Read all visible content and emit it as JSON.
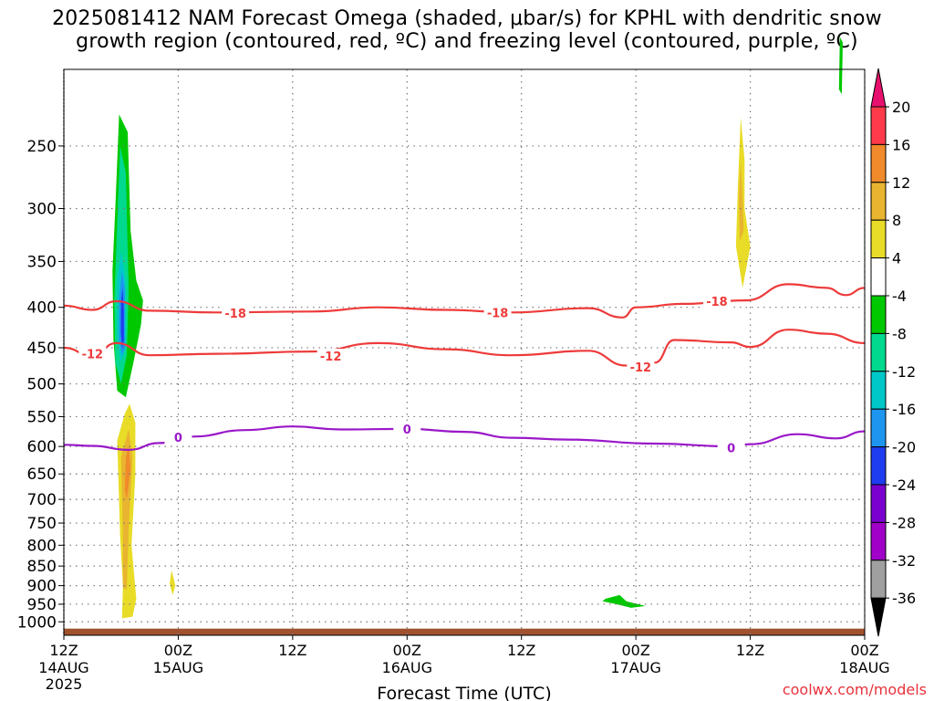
{
  "title_line1": "2025081412 NAM Forecast Omega (shaded, μbar/s) for KPHL with dendritic snow",
  "title_line2": "growth region (contoured, red, ºC) and freezing level (contoured, purple, ºC)",
  "credit": "coolwx.com/models",
  "chart_data": {
    "type": "contour-timeheight",
    "xlabel": "Forecast Time (UTC)",
    "ylabel": "",
    "x_ticks": [
      {
        "label": "12Z",
        "date": "14AUG",
        "year": "2025",
        "hour": 0
      },
      {
        "label": "00Z",
        "date": "15AUG",
        "year": "",
        "hour": 12
      },
      {
        "label": "12Z",
        "date": "",
        "year": "",
        "hour": 24
      },
      {
        "label": "00Z",
        "date": "16AUG",
        "year": "",
        "hour": 36
      },
      {
        "label": "12Z",
        "date": "",
        "year": "",
        "hour": 48
      },
      {
        "label": "00Z",
        "date": "17AUG",
        "year": "",
        "hour": 60
      },
      {
        "label": "12Z",
        "date": "",
        "year": "",
        "hour": 72
      },
      {
        "label": "00Z",
        "date": "18AUG",
        "year": "",
        "hour": 84
      }
    ],
    "y_scale": "log",
    "y_ticks": [
      250,
      300,
      350,
      400,
      450,
      500,
      550,
      600,
      650,
      700,
      750,
      800,
      850,
      900,
      950,
      1000
    ],
    "ylim_hpa": [
      1040,
      200
    ],
    "colorbar": {
      "labels": [
        "20",
        "16",
        "12",
        "8",
        "4",
        "-4",
        "-8",
        "-12",
        "-16",
        "-20",
        "-24",
        "-28",
        "-32",
        "-36"
      ],
      "colors": [
        "#ff3a4a",
        "#f08a2a",
        "#e9b430",
        "#e8dc28",
        "#ffffff",
        "#00c800",
        "#00d98e",
        "#00c8c8",
        "#1e96f0",
        "#1e3cf0",
        "#7a00d0",
        "#a000c8",
        "#a0a0a0"
      ],
      "top_arrow_color": "#e8106e",
      "bottom_arrow_color": "#000000"
    },
    "contours": [
      {
        "name": "-18",
        "color": "#ee3a3a",
        "points": [
          [
            0,
            398
          ],
          [
            3,
            403
          ],
          [
            5.5,
            393
          ],
          [
            9,
            404
          ],
          [
            16,
            406
          ],
          [
            26,
            405
          ],
          [
            33,
            400
          ],
          [
            40,
            403
          ],
          [
            47,
            406
          ],
          [
            55,
            401
          ],
          [
            58.6,
            412
          ],
          [
            60,
            400
          ],
          [
            65,
            396
          ],
          [
            71.5,
            392
          ],
          [
            76,
            374
          ],
          [
            80,
            378
          ],
          [
            82,
            386
          ],
          [
            84,
            378
          ]
        ],
        "labels": [
          [
            18,
            407
          ],
          [
            45.5,
            406
          ],
          [
            68.5,
            393
          ]
        ]
      },
      {
        "name": "-12",
        "color": "#ee3a3a",
        "points": [
          [
            0,
            450
          ],
          [
            3,
            461
          ],
          [
            5.5,
            444
          ],
          [
            9,
            460
          ],
          [
            16,
            458
          ],
          [
            26,
            455
          ],
          [
            33,
            444
          ],
          [
            40,
            452
          ],
          [
            47,
            460
          ],
          [
            55,
            454
          ],
          [
            59,
            474
          ],
          [
            62,
            470
          ],
          [
            64,
            440
          ],
          [
            70,
            443
          ],
          [
            72,
            449
          ],
          [
            76,
            427
          ],
          [
            80,
            432
          ],
          [
            84,
            444
          ]
        ],
        "labels": [
          [
            3,
            458
          ],
          [
            28,
            461
          ],
          [
            60.5,
            476
          ]
        ]
      },
      {
        "name": "0",
        "color": "#9a18c8",
        "points": [
          [
            0,
            597
          ],
          [
            3,
            599
          ],
          [
            6.8,
            606
          ],
          [
            10,
            594
          ],
          [
            13.5,
            583
          ],
          [
            19,
            572
          ],
          [
            24,
            566
          ],
          [
            29,
            571
          ],
          [
            36,
            570
          ],
          [
            42,
            575
          ],
          [
            47,
            585
          ],
          [
            53,
            588
          ],
          [
            62,
            595
          ],
          [
            70,
            600
          ],
          [
            72,
            596
          ],
          [
            77,
            579
          ],
          [
            81,
            586
          ],
          [
            84,
            574
          ]
        ],
        "labels": [
          [
            12,
            584
          ],
          [
            36,
            570
          ],
          [
            70,
            602
          ]
        ]
      }
    ],
    "shaded_regions": [
      {
        "value": "-6",
        "color": "#00c800",
        "poly": [
          [
            5.8,
            228
          ],
          [
            6.7,
            240
          ],
          [
            7.0,
            320
          ],
          [
            7.6,
            370
          ],
          [
            8.3,
            392
          ],
          [
            8.1,
            420
          ],
          [
            7.3,
            470
          ],
          [
            6.5,
            520
          ],
          [
            5.6,
            510
          ],
          [
            5.2,
            440
          ],
          [
            5.1,
            360
          ],
          [
            5.4,
            300
          ]
        ]
      },
      {
        "value": "-10",
        "color": "#00d98e",
        "poly": [
          [
            5.9,
            250
          ],
          [
            6.5,
            270
          ],
          [
            6.8,
            380
          ],
          [
            6.6,
            460
          ],
          [
            6.0,
            500
          ],
          [
            5.4,
            470
          ],
          [
            5.3,
            390
          ]
        ]
      },
      {
        "value": "-14",
        "color": "#00c8c8",
        "poly": [
          [
            6.0,
            340
          ],
          [
            6.5,
            370
          ],
          [
            6.5,
            450
          ],
          [
            6.0,
            470
          ],
          [
            5.6,
            440
          ],
          [
            5.6,
            370
          ]
        ]
      },
      {
        "value": "-18",
        "color": "#1e96f0",
        "poly": [
          [
            6.1,
            360
          ],
          [
            6.4,
            380
          ],
          [
            6.4,
            450
          ],
          [
            6.1,
            460
          ],
          [
            5.8,
            440
          ],
          [
            5.8,
            390
          ]
        ]
      },
      {
        "value": "-22",
        "color": "#1e3cf0",
        "poly": [
          [
            6.15,
            378
          ],
          [
            6.3,
            400
          ],
          [
            6.3,
            440
          ],
          [
            6.12,
            452
          ],
          [
            5.98,
            430
          ],
          [
            6.0,
            395
          ]
        ]
      },
      {
        "value": "6",
        "color": "#e8dc28",
        "poly": [
          [
            6.9,
            530
          ],
          [
            7.5,
            560
          ],
          [
            7.5,
            650
          ],
          [
            7.1,
            800
          ],
          [
            7.6,
            935
          ],
          [
            7.2,
            985
          ],
          [
            6.1,
            990
          ],
          [
            6.2,
            900
          ],
          [
            5.9,
            780
          ],
          [
            5.6,
            590
          ],
          [
            6.4,
            545
          ]
        ]
      },
      {
        "value": "10",
        "color": "#e9b430",
        "poly": [
          [
            6.8,
            570
          ],
          [
            7.2,
            620
          ],
          [
            6.8,
            760
          ],
          [
            6.6,
            910
          ],
          [
            6.2,
            905
          ],
          [
            6.2,
            780
          ],
          [
            6.0,
            620
          ]
        ]
      },
      {
        "value": "14",
        "color": "#f08a2a",
        "poly": [
          [
            6.8,
            600
          ],
          [
            7.0,
            640
          ],
          [
            6.6,
            700
          ],
          [
            6.4,
            680
          ],
          [
            6.5,
            620
          ]
        ]
      },
      {
        "value": "6",
        "color": "#e8dc28",
        "poly": [
          [
            11.3,
            860
          ],
          [
            11.7,
            900
          ],
          [
            11.4,
            925
          ],
          [
            11.1,
            895
          ]
        ]
      },
      {
        "value": "6",
        "color": "#e8dc28",
        "poly": [
          [
            71,
            230
          ],
          [
            71.4,
            260
          ],
          [
            71.4,
            300
          ],
          [
            72.0,
            335
          ],
          [
            71.2,
            378
          ],
          [
            70.5,
            335
          ],
          [
            70.7,
            280
          ]
        ]
      },
      {
        "value": "10",
        "color": "#e9b430",
        "poly": [
          [
            71,
            262
          ],
          [
            71.2,
            290
          ],
          [
            71.3,
            320
          ],
          [
            70.9,
            330
          ],
          [
            70.8,
            290
          ]
        ]
      },
      {
        "value": "-6",
        "color": "#00c800",
        "poly": [
          [
            56.8,
            935
          ],
          [
            58.3,
            925
          ],
          [
            59.0,
            942
          ],
          [
            61.0,
            955
          ],
          [
            59.5,
            960
          ],
          [
            58.0,
            950
          ],
          [
            56.5,
            942
          ]
        ]
      },
      {
        "value": "-6",
        "color": "#00c800",
        "poly": [
          [
            81.4,
            182
          ],
          [
            81.7,
            185
          ],
          [
            81.6,
            215
          ],
          [
            81.3,
            212
          ]
        ]
      }
    ],
    "ground_hpa": 1020
  }
}
